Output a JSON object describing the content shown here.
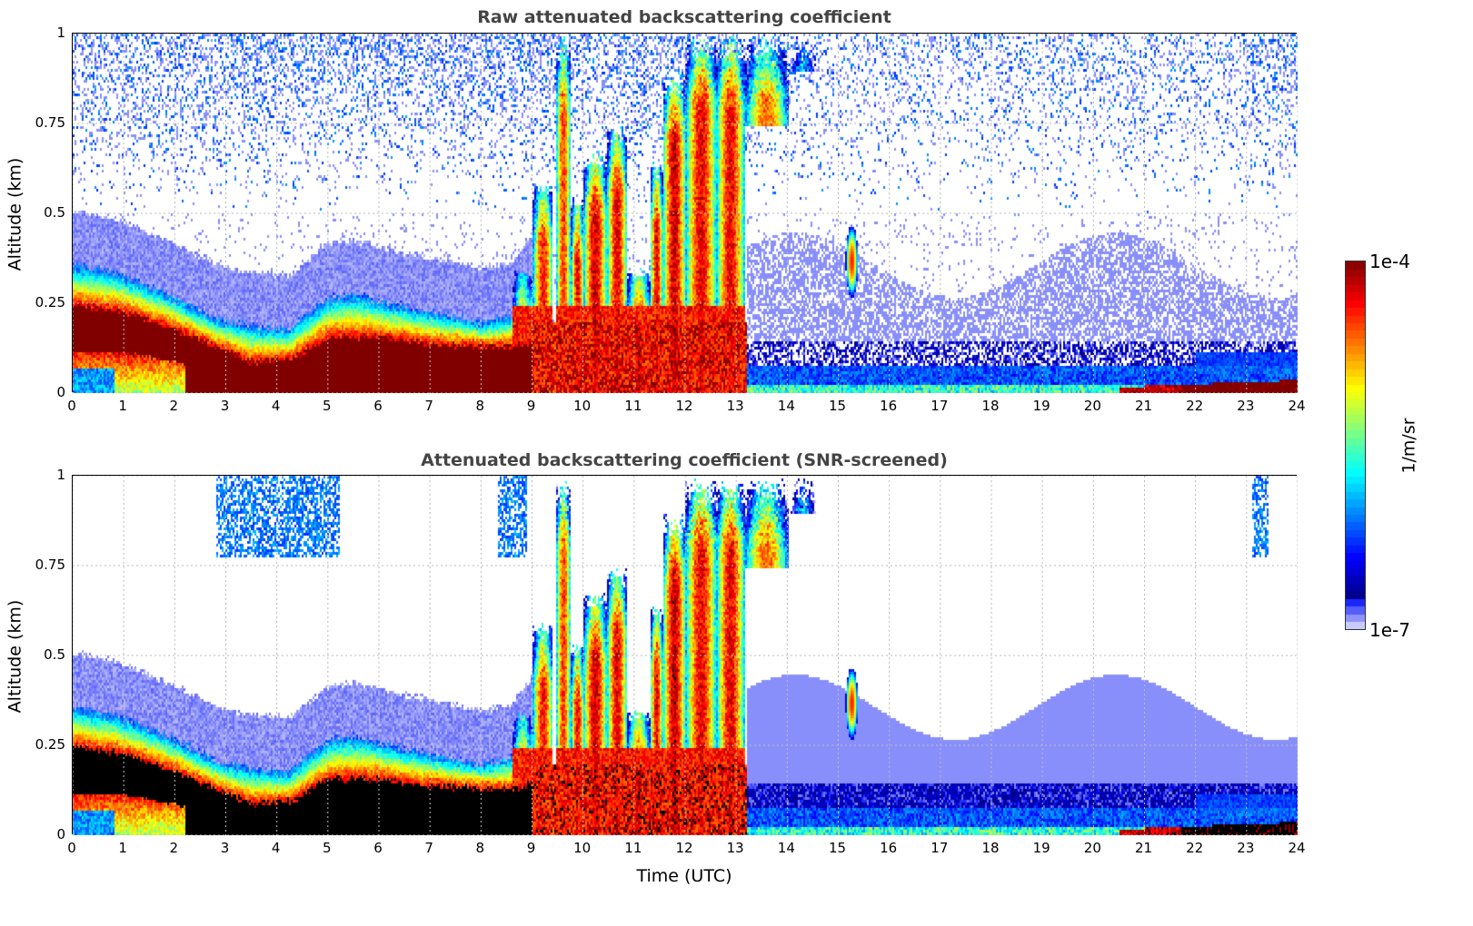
{
  "chart_data": {
    "type": "heatmap",
    "panels": [
      {
        "title": "Raw attenuated backscattering coefficient",
        "screened": false
      },
      {
        "title": "Attenuated backscattering coefficient (SNR-screened)",
        "screened": true
      }
    ],
    "xlabel": "Time (UTC)",
    "ylabel": "Altitude (km)",
    "xlim": [
      0,
      24
    ],
    "ylim": [
      0,
      1
    ],
    "xticks": [
      "0",
      "1",
      "2",
      "3",
      "4",
      "5",
      "6",
      "7",
      "8",
      "9",
      "10",
      "11",
      "12",
      "13",
      "14",
      "15",
      "16",
      "17",
      "18",
      "19",
      "20",
      "21",
      "22",
      "23",
      "24"
    ],
    "yticks": [
      {
        "v": 0,
        "label": "0"
      },
      {
        "v": 0.25,
        "label": "0.25"
      },
      {
        "v": 0.5,
        "label": "0.5"
      },
      {
        "v": 0.75,
        "label": "0.75"
      },
      {
        "v": 1,
        "label": "1"
      }
    ],
    "grid": true,
    "colorbar": {
      "label": "1/m/sr",
      "min_label": "1e-7",
      "max_label": "1e-4",
      "log10_range": [
        -7,
        -4
      ],
      "scale": "log",
      "colormap": "jet (lavender low end)",
      "over_color": "#000000"
    },
    "features": {
      "boundary_layer_top_km": [
        [
          0,
          0.36
        ],
        [
          0.8,
          0.34
        ],
        [
          1.5,
          0.3
        ],
        [
          2,
          0.27
        ],
        [
          2.8,
          0.21
        ],
        [
          3.5,
          0.19
        ],
        [
          4.2,
          0.18
        ],
        [
          5,
          0.27
        ],
        [
          5.5,
          0.28
        ],
        [
          6,
          0.26
        ],
        [
          7,
          0.23
        ],
        [
          8,
          0.2
        ],
        [
          8.6,
          0.22
        ],
        [
          9,
          0.3
        ]
      ],
      "dense_layer_top_km": [
        [
          0,
          0.25
        ],
        [
          1,
          0.23
        ],
        [
          2,
          0.18
        ],
        [
          3,
          0.12
        ],
        [
          3.5,
          0.09
        ],
        [
          4.3,
          0.1
        ],
        [
          5,
          0.16
        ],
        [
          6,
          0.16
        ],
        [
          7,
          0.14
        ],
        [
          8.6,
          0.13
        ],
        [
          9,
          0.15
        ]
      ],
      "cloud_columns": [
        {
          "start": 8.6,
          "end": 9.0,
          "top_km": 0.35,
          "log10": -4.6
        },
        {
          "start": 9.0,
          "end": 9.4,
          "top_km": 0.6,
          "log10": -4.4
        },
        {
          "start": 9.45,
          "end": 9.75,
          "top_km": 1.0,
          "log10": -4.5
        },
        {
          "start": 9.75,
          "end": 10.0,
          "top_km": 0.55,
          "log10": -4.3
        },
        {
          "start": 10.0,
          "end": 10.45,
          "top_km": 0.68,
          "log10": -4.2
        },
        {
          "start": 10.45,
          "end": 10.85,
          "top_km": 0.75,
          "log10": -4.3
        },
        {
          "start": 10.85,
          "end": 11.3,
          "top_km": 0.35,
          "log10": -4.2
        },
        {
          "start": 11.3,
          "end": 11.55,
          "top_km": 0.65,
          "log10": -4.3
        },
        {
          "start": 11.55,
          "end": 12.0,
          "top_km": 0.9,
          "log10": -4.2
        },
        {
          "start": 12.0,
          "end": 12.6,
          "top_km": 1.0,
          "log10": -4.3
        },
        {
          "start": 12.6,
          "end": 13.15,
          "top_km": 1.0,
          "log10": -4.3
        },
        {
          "start": 13.15,
          "end": 14.0,
          "top_km": 1.0,
          "log10": -4.6,
          "base_km": 0.75
        },
        {
          "start": 14.0,
          "end": 14.6,
          "top_km": 1.0,
          "log10": -5.2,
          "base_km": 0.9
        }
      ],
      "night_surface_layer": {
        "start": 13.2,
        "end": 24,
        "base_km": 0.03,
        "top_km": 0.07,
        "log10": -6.2
      },
      "night_haze": {
        "start": 13.2,
        "end": 24,
        "top_km": 0.45,
        "log10": -6.9
      },
      "plume": {
        "time": 15.25,
        "alt_km": 0.37,
        "half_height_km": 0.1,
        "log10": -4.4
      },
      "surface_aerosol": {
        "start": 20.5,
        "end": 24,
        "top_km": 0.04,
        "log10": -4.2
      },
      "upper_noise": {
        "from_km": 0.5,
        "log10": -6.3
      }
    }
  }
}
